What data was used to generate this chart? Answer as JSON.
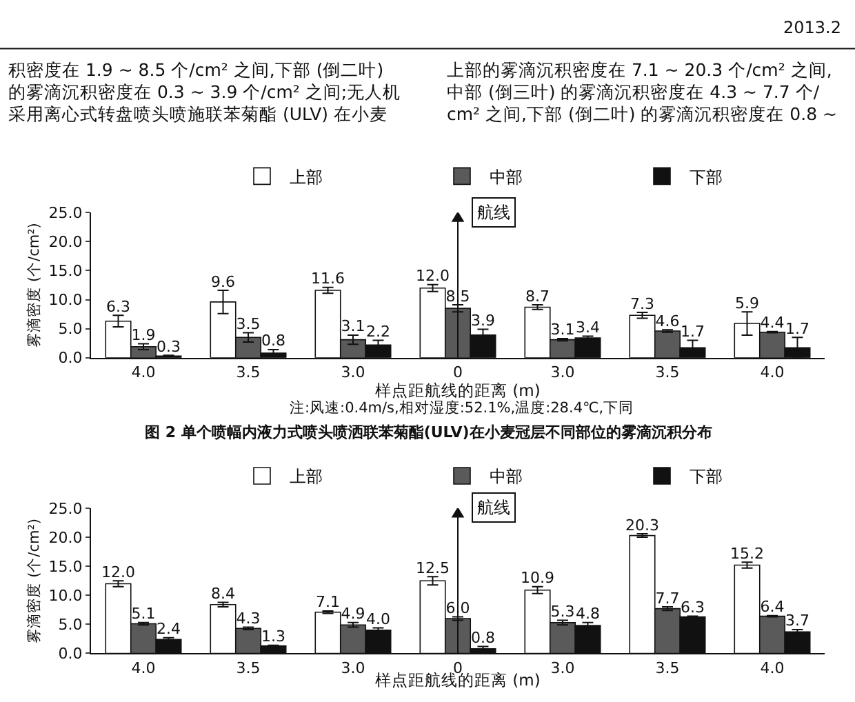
{
  "chart_data": [
    {
      "type": "bar",
      "title": "图 2 单个喷幅内液力式喷头喷洒联苯菊酯(ULV)在小麦冠层不同部位的雾滴沉积分布",
      "xlabel": "样点距航线的距离 (m)",
      "ylabel": "雾滴密度 (个/cm²)",
      "categories": [
        "4.0",
        "3.5",
        "3.0",
        "0",
        "3.0",
        "3.5",
        "4.0"
      ],
      "series": [
        {
          "name": "上部",
          "color": "#ffffff",
          "values": [
            6.3,
            9.6,
            11.6,
            12.0,
            8.7,
            7.3,
            5.9
          ],
          "value_labels": [
            "6.3",
            "9.6",
            "11.6",
            "12.0",
            "8.7",
            "7.3",
            "5.9"
          ],
          "errors": [
            1.0,
            2.0,
            0.5,
            0.6,
            0.4,
            0.5,
            2.0
          ]
        },
        {
          "name": "中部",
          "color": "#5a5a5a",
          "values": [
            1.9,
            3.5,
            3.1,
            8.5,
            3.1,
            4.6,
            4.4
          ],
          "value_labels": [
            "1.9",
            "3.5",
            "3.1",
            "8.5",
            "3.1",
            "4.6",
            "4.4"
          ],
          "errors": [
            0.5,
            0.8,
            0.8,
            0.6,
            0.2,
            0.2,
            0.1
          ]
        },
        {
          "name": "下部",
          "color": "#111111",
          "values": [
            0.3,
            0.8,
            2.2,
            3.9,
            3.4,
            1.7,
            1.7
          ],
          "value_labels": [
            "0.3",
            "0.8",
            "2.2",
            "3.9",
            "3.4",
            "1.7",
            "1.7"
          ],
          "errors": [
            0.1,
            0.6,
            0.8,
            1.0,
            0.3,
            1.3,
            1.8
          ]
        }
      ],
      "ylim": [
        0,
        25
      ],
      "yticks": [
        {
          "value": 0,
          "label": "0.0"
        },
        {
          "value": 5,
          "label": "5.0"
        },
        {
          "value": 10,
          "label": "10.0"
        },
        {
          "value": 15,
          "label": "15.0"
        },
        {
          "value": 20,
          "label": "20.0"
        },
        {
          "value": 25,
          "label": "25.0"
        }
      ],
      "legend": "top",
      "ref_lines": [
        {
          "axis": "x",
          "value": "0",
          "label": "航线"
        }
      ],
      "annotations": [
        "2013.2",
        "积密度在 1.9 ~ 8.5 个/cm² 之间,下部 (倒二叶)",
        "的雾滴沉积密度在 0.3 ~ 3.9 个/cm² 之间;无人机",
        "采用离心式转盘喷头喷施联苯菊酯 (ULV) 在小麦",
        "上部的雾滴沉积密度在 7.1 ~ 20.3 个/cm² 之间,",
        "中部 (倒三叶) 的雾滴沉积密度在 4.3 ~ 7.7 个/",
        "cm² 之间,下部 (倒二叶) 的雾滴沉积密度在 0.8 ~",
        "注:风速:0.4m/s,相对湿度:52.1%,温度:28.4℃,下同"
      ]
    },
    {
      "type": "bar",
      "xlabel": "样点距航线的距离 (m)",
      "ylabel": "雾滴密度 (个/cm²)",
      "categories": [
        "4.0",
        "3.5",
        "3.0",
        "0",
        "3.0",
        "3.5",
        "4.0"
      ],
      "series": [
        {
          "name": "上部",
          "color": "#ffffff",
          "values": [
            12.0,
            8.4,
            7.1,
            12.5,
            10.9,
            20.3,
            15.2
          ],
          "value_labels": [
            "12.0",
            "8.4",
            "7.1",
            "12.5",
            "10.9",
            "20.3",
            "15.2"
          ],
          "errors": [
            0.5,
            0.4,
            0.2,
            0.7,
            0.6,
            0.3,
            0.5
          ]
        },
        {
          "name": "中部",
          "color": "#5a5a5a",
          "values": [
            5.1,
            4.3,
            4.9,
            6.0,
            5.3,
            7.7,
            6.4
          ],
          "value_labels": [
            "5.1",
            "4.3",
            "4.9",
            "6.0",
            "5.3",
            "7.7",
            "6.4"
          ],
          "errors": [
            0.2,
            0.2,
            0.4,
            0.3,
            0.4,
            0.3,
            0.1
          ]
        },
        {
          "name": "下部",
          "color": "#111111",
          "values": [
            2.4,
            1.3,
            4.0,
            0.8,
            4.8,
            6.3,
            3.7
          ],
          "value_labels": [
            "2.4",
            "1.3",
            "4.0",
            "0.8",
            "4.8",
            "6.3",
            "3.7"
          ],
          "errors": [
            0.3,
            0.1,
            0.4,
            0.4,
            0.5,
            0.1,
            0.4
          ]
        }
      ],
      "ylim": [
        0,
        25
      ],
      "yticks": [
        {
          "value": 0,
          "label": "0.0"
        },
        {
          "value": 5,
          "label": "5.0"
        },
        {
          "value": 10,
          "label": "10.0"
        },
        {
          "value": 15,
          "label": "15.0"
        },
        {
          "value": 20,
          "label": "20.0"
        },
        {
          "value": 25,
          "label": "25.0"
        }
      ],
      "legend": "top",
      "ref_lines": [
        {
          "axis": "x",
          "value": "0",
          "label": "航线"
        }
      ]
    }
  ]
}
